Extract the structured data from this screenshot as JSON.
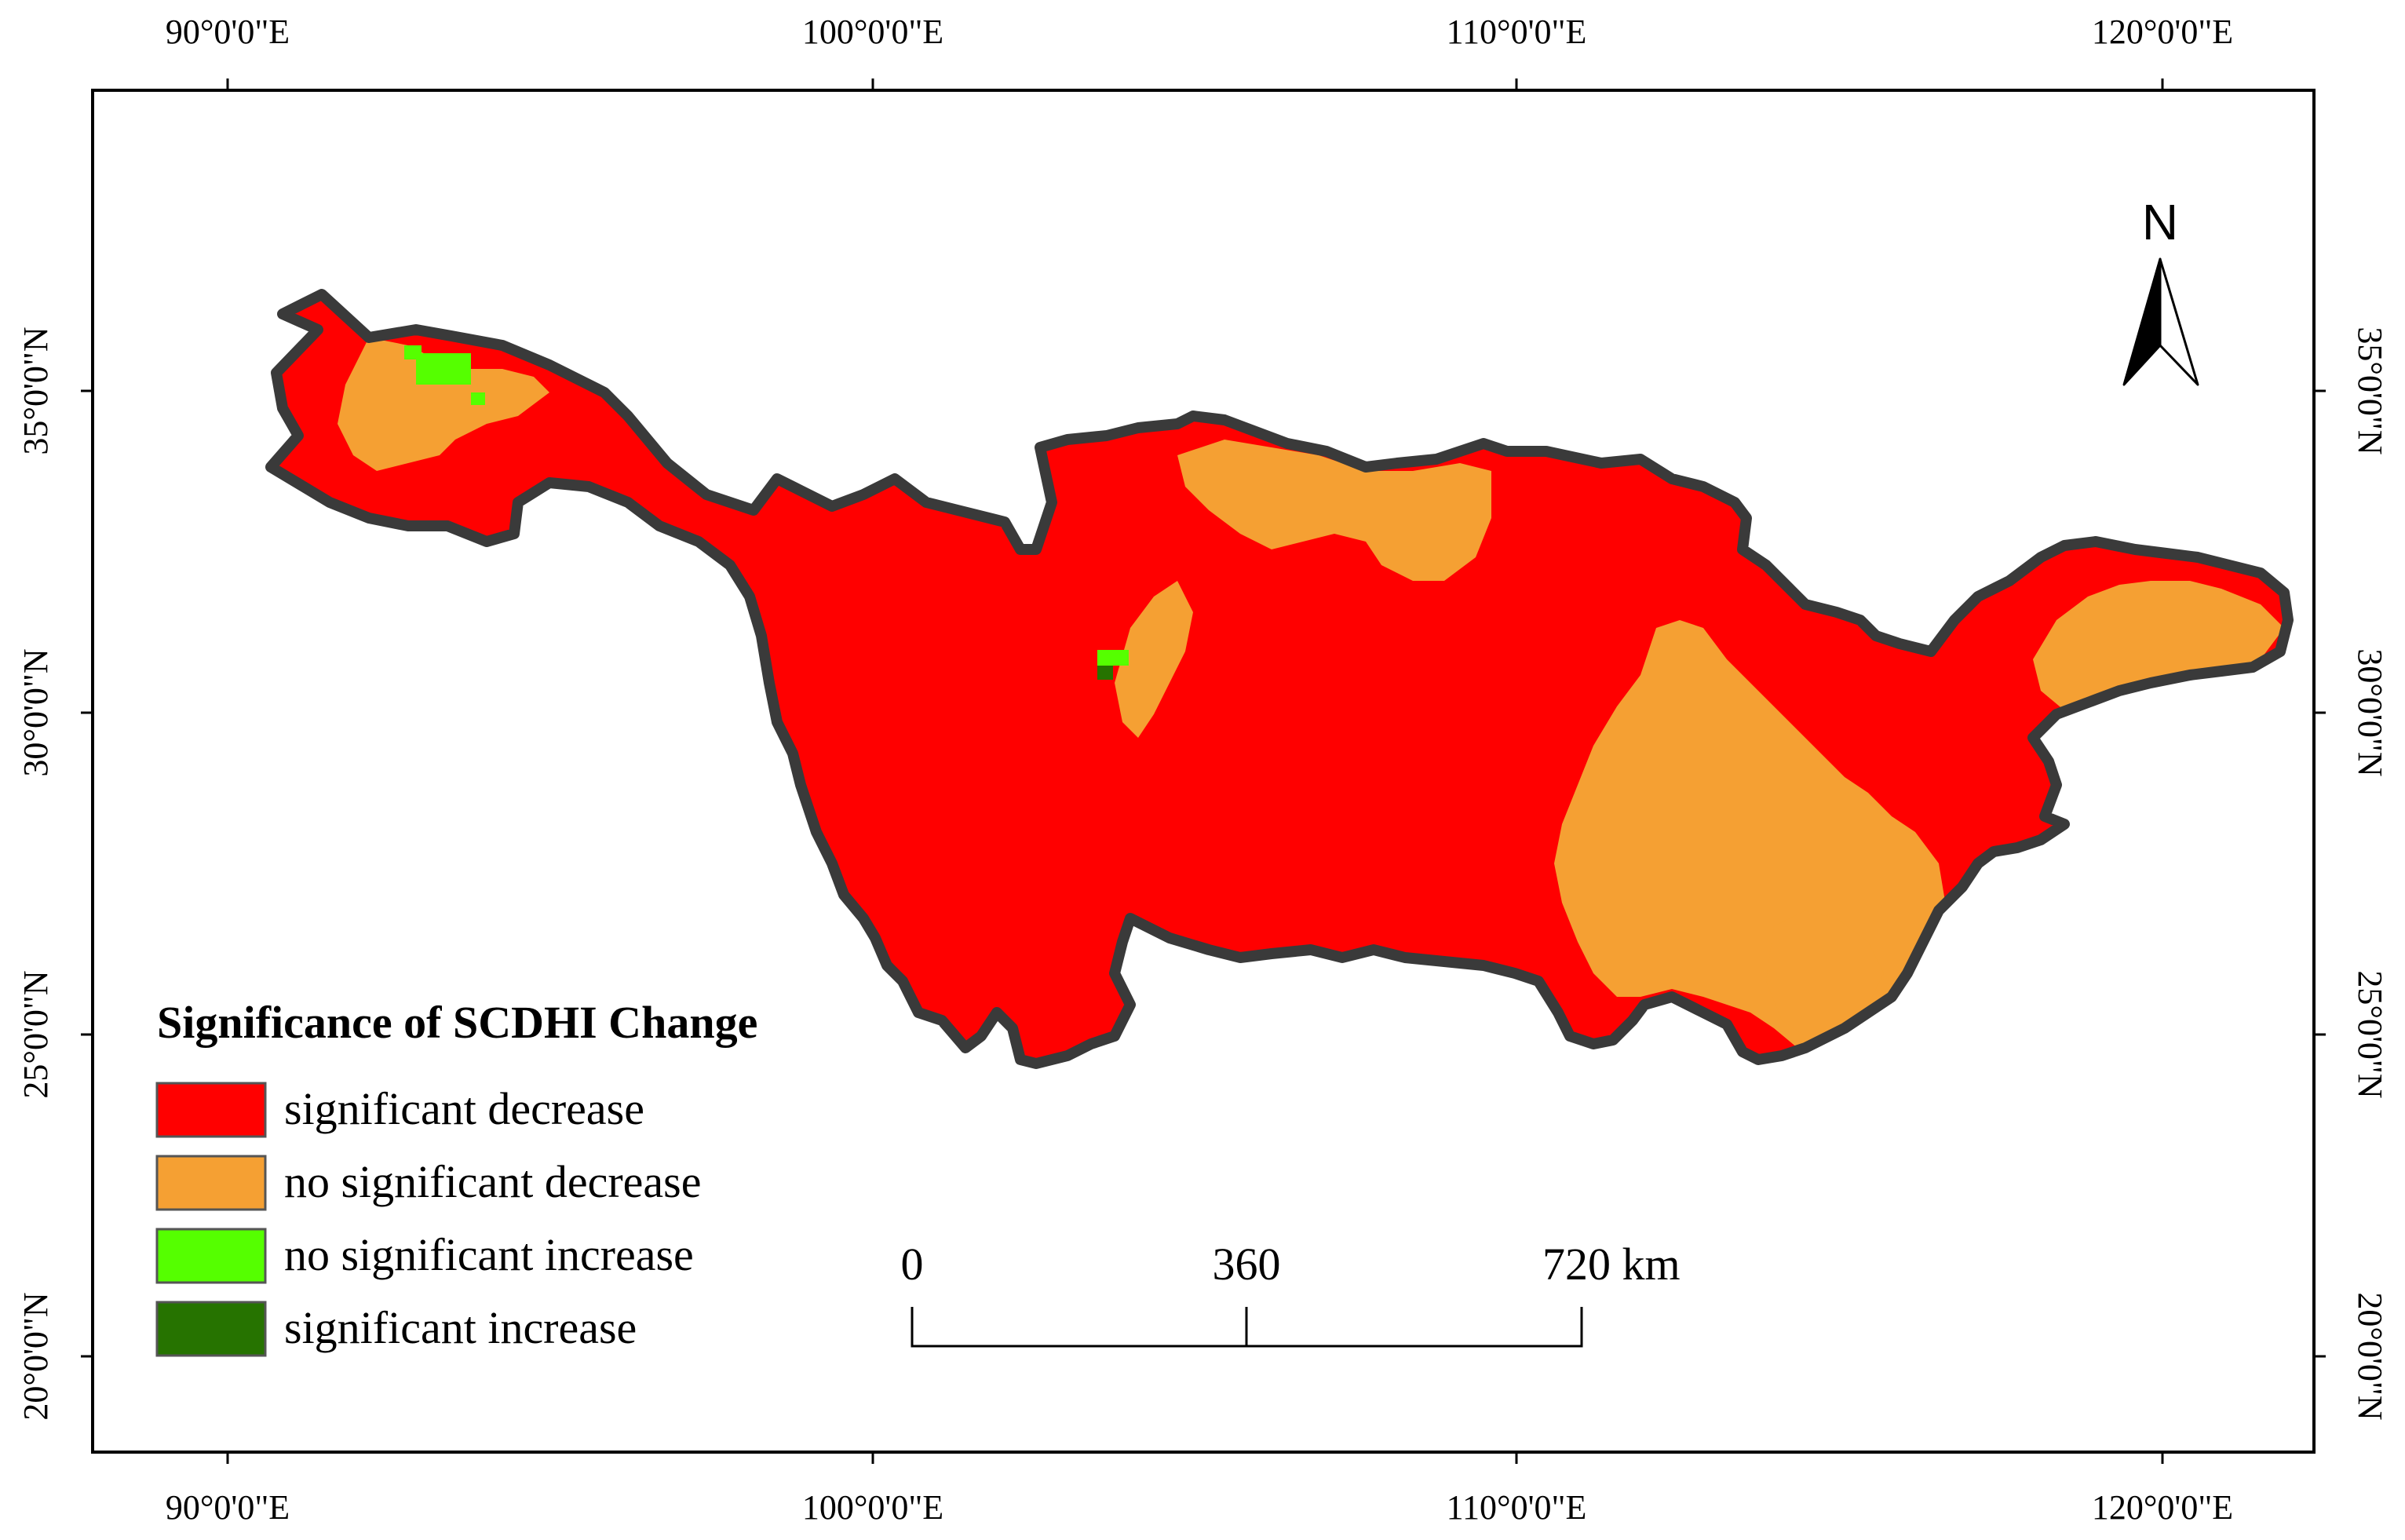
{
  "map": {
    "x_ticks": [
      "90°0'0\"E",
      "100°0'0\"E",
      "110°0'0\"E",
      "120°0'0\"E"
    ],
    "y_ticks": [
      "35°0'0\"N",
      "30°0'0\"N",
      "25°0'0\"N",
      "20°0'0\"N"
    ],
    "north_label": "N",
    "colors": {
      "significant_decrease": "#ff0000",
      "no_significant_decrease": "#f5a033",
      "no_significant_increase": "#55ff00",
      "significant_increase": "#267300",
      "boundary": "#3a3a3a"
    }
  },
  "legend": {
    "title": "Significance of SCDHI Change",
    "items": [
      {
        "label": "significant decrease",
        "color": "#ff0000"
      },
      {
        "label": "no significant decrease",
        "color": "#f5a033"
      },
      {
        "label": "no significant increase",
        "color": "#55ff00"
      },
      {
        "label": "significant increase",
        "color": "#267300"
      }
    ]
  },
  "scale_bar": {
    "labels": [
      "0",
      "360",
      "720 km"
    ]
  }
}
